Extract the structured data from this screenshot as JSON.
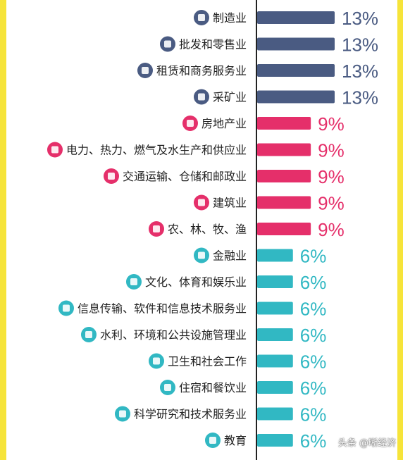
{
  "chart_data": {
    "type": "bar",
    "orientation": "horizontal",
    "categories": [
      "制造业",
      "批发和零售业",
      "租赁和商务服务业",
      "采矿业",
      "房地产业",
      "电力、热力、燃气及水生产和供应业",
      "交通运输、仓储和邮政业",
      "建筑业",
      "农、林、牧、渔",
      "金融业",
      "文化、体育和娱乐业",
      "信息传输、软件和信息技术服务业",
      "水利、环境和公共设施管理业",
      "卫生和社会工作",
      "住宿和餐饮业",
      "科学研究和技术服务业",
      "教育"
    ],
    "values": [
      13,
      13,
      13,
      13,
      9,
      9,
      9,
      9,
      9,
      6,
      6,
      6,
      6,
      6,
      6,
      6,
      6
    ],
    "value_labels": [
      "13%",
      "13%",
      "13%",
      "13%",
      "9%",
      "9%",
      "9%",
      "9%",
      "9%",
      "6%",
      "6%",
      "6%",
      "6%",
      "6%",
      "6%",
      "6%",
      "6%"
    ],
    "icons": [
      "factory-icon",
      "shopping-icon",
      "briefcase-icon",
      "mining-tools-icon",
      "building-icon",
      "power-house-icon",
      "transport-icon",
      "crane-icon",
      "plant-icon",
      "money-bag-icon",
      "palette-icon",
      "gear-icon",
      "water-drop-icon",
      "hospital-icon",
      "dining-icon",
      "network-icon",
      "book-icon"
    ],
    "colors": [
      "#4a5b82",
      "#4a5b82",
      "#4a5b82",
      "#4a5b82",
      "#e52f6a",
      "#e52f6a",
      "#e52f6a",
      "#e52f6a",
      "#e52f6a",
      "#31b8c3",
      "#31b8c3",
      "#31b8c3",
      "#31b8c3",
      "#31b8c3",
      "#31b8c3",
      "#31b8c3",
      "#31b8c3"
    ],
    "xlim": [
      0,
      13
    ],
    "grid": false,
    "legend": "none"
  },
  "watermark": "头条 @晰经济"
}
